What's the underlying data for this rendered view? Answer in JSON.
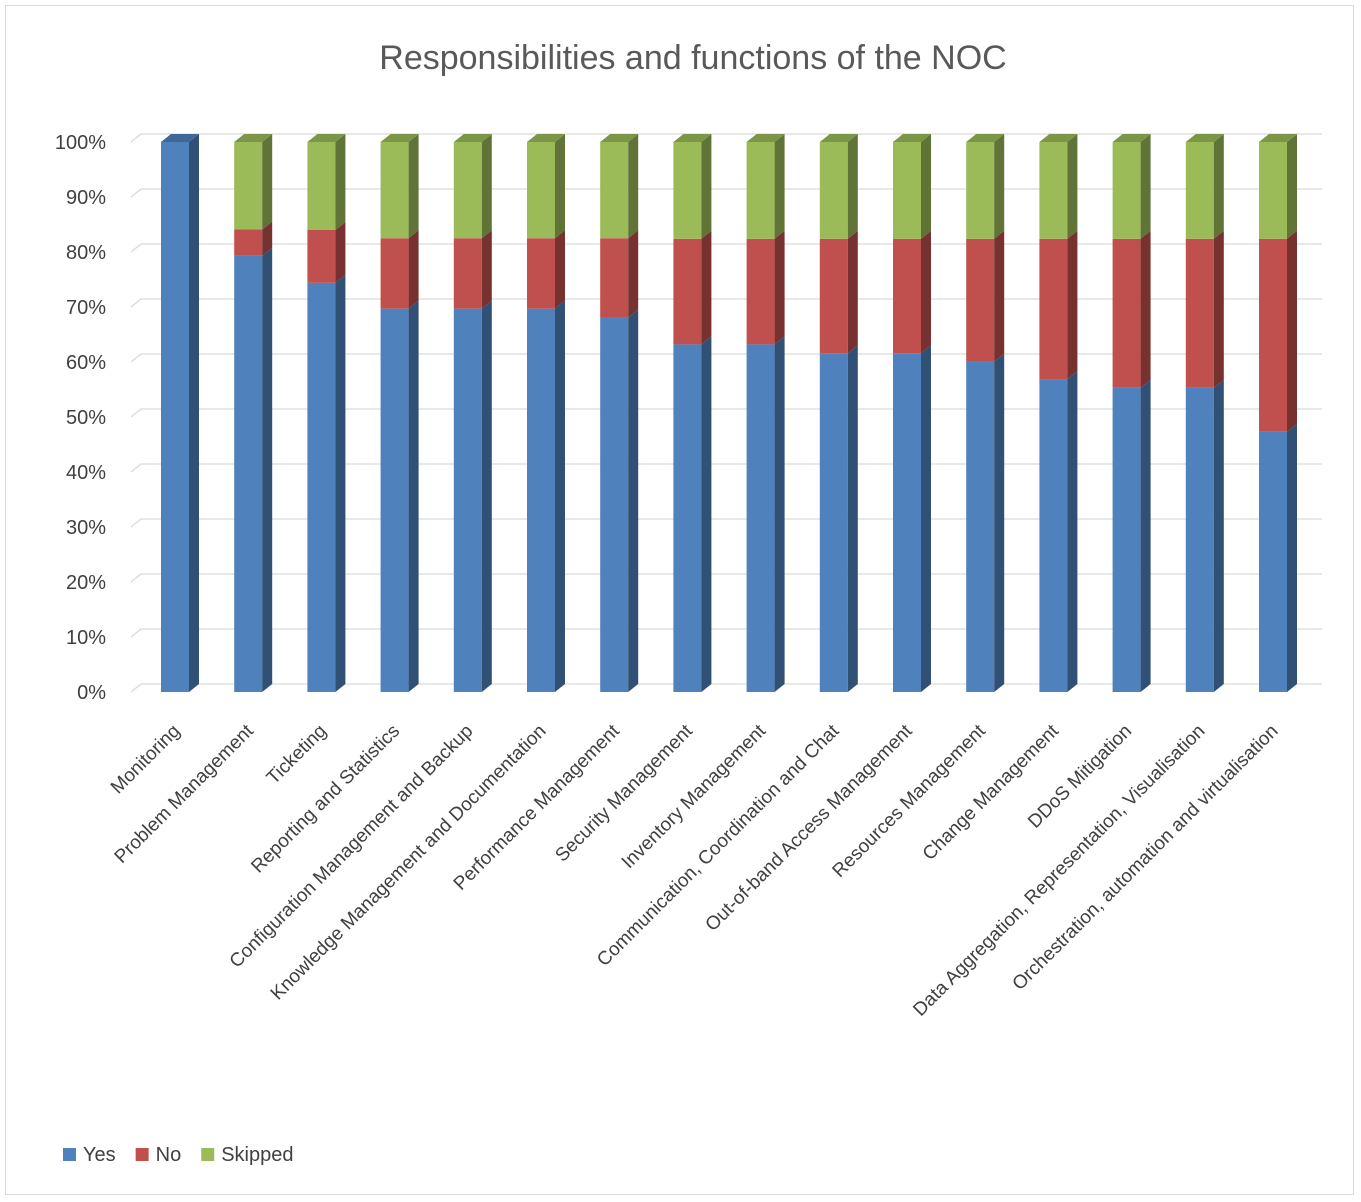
{
  "chart_data": {
    "type": "bar",
    "stacked": true,
    "percent": true,
    "three_d": true,
    "title": "Responsibilities and functions of the NOC",
    "categories": [
      "Monitoring",
      "Problem Management",
      "Ticketing",
      "Reporting and Statistics",
      "Configuration Management and Backup",
      "Knowledge Management and Documentation",
      "Performance Management",
      "Security Management",
      "Inventory Management",
      "Communication, Coordination and Chat",
      "Out-of-band Access Management",
      "Resources Management",
      "Change Management",
      "DDoS Mitigation",
      "Data Aggregation, Representation, Visualisation",
      "Orchestration, automation and virtualisation"
    ],
    "series": [
      {
        "name": "Yes",
        "color": "#4f81bd",
        "values": [
          100,
          79.3,
          74.4,
          69.7,
          69.7,
          69.7,
          68.1,
          63.2,
          63.2,
          61.6,
          61.6,
          60.1,
          56.9,
          55.3,
          55.3,
          47.3
        ]
      },
      {
        "name": "No",
        "color": "#c0504d",
        "values": [
          0,
          4.8,
          9.6,
          12.8,
          12.8,
          12.8,
          14.4,
          19.2,
          19.2,
          20.8,
          20.8,
          22.3,
          25.5,
          27.1,
          27.1,
          35.1
        ]
      },
      {
        "name": "Skipped",
        "color": "#9bbb59",
        "values": [
          0,
          15.9,
          16.0,
          17.5,
          17.5,
          17.5,
          17.5,
          17.6,
          17.6,
          17.6,
          17.6,
          17.6,
          17.6,
          17.6,
          17.6,
          17.6
        ]
      }
    ],
    "y_ticks": [
      "0%",
      "10%",
      "20%",
      "30%",
      "40%",
      "50%",
      "60%",
      "70%",
      "80%",
      "90%",
      "100%"
    ],
    "ylim": [
      0,
      100
    ],
    "grid": true,
    "legend_position": "bottom-left"
  }
}
